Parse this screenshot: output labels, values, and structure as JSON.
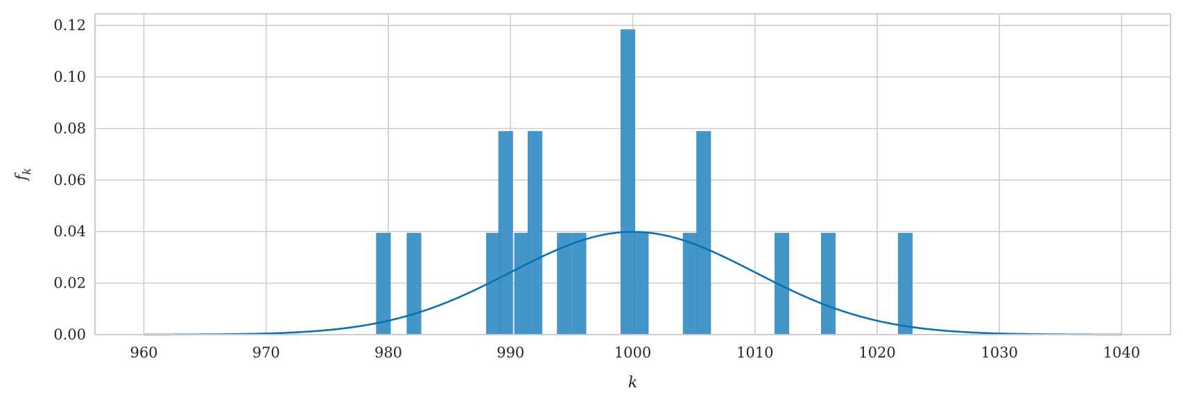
{
  "chart_data": {
    "type": "bar",
    "title": "",
    "xlabel": "k",
    "ylabel": "f",
    "ylabel_subscript": "k",
    "xlim": [
      956,
      1044
    ],
    "ylim": [
      0,
      0.1245
    ],
    "xticks": [
      960,
      970,
      980,
      990,
      1000,
      1010,
      1020,
      1030,
      1040
    ],
    "xtick_labels": [
      "960",
      "970",
      "980",
      "990",
      "1000",
      "1010",
      "1020",
      "1030",
      "1040"
    ],
    "yticks": [
      0,
      0.02,
      0.04,
      0.06,
      0.08,
      0.1,
      0.12
    ],
    "ytick_labels": [
      "0.00",
      "0.02",
      "0.04",
      "0.06",
      "0.08",
      "0.10",
      "0.12"
    ],
    "grid": true,
    "colors": {
      "bars": "#3a8fc5",
      "curve": "#0a6fb0",
      "grid": "#cccccc",
      "frame": "#cccccc"
    },
    "series": [
      {
        "type": "bar",
        "bin_width": 1.2,
        "x": [
          979.6,
          982.1,
          988.6,
          989.6,
          990.9,
          992.0,
          994.4,
          995.6,
          999.6,
          1000.7,
          1004.7,
          1005.8,
          1012.2,
          1016.0,
          1022.3
        ],
        "values": [
          0.0395,
          0.0395,
          0.0395,
          0.079,
          0.0395,
          0.079,
          0.0395,
          0.0395,
          0.1185,
          0.0395,
          0.0395,
          0.079,
          0.0395,
          0.0395,
          0.0395
        ]
      },
      {
        "type": "line",
        "mean": 1000,
        "std": 10,
        "x_range": [
          960,
          1040
        ]
      }
    ]
  }
}
